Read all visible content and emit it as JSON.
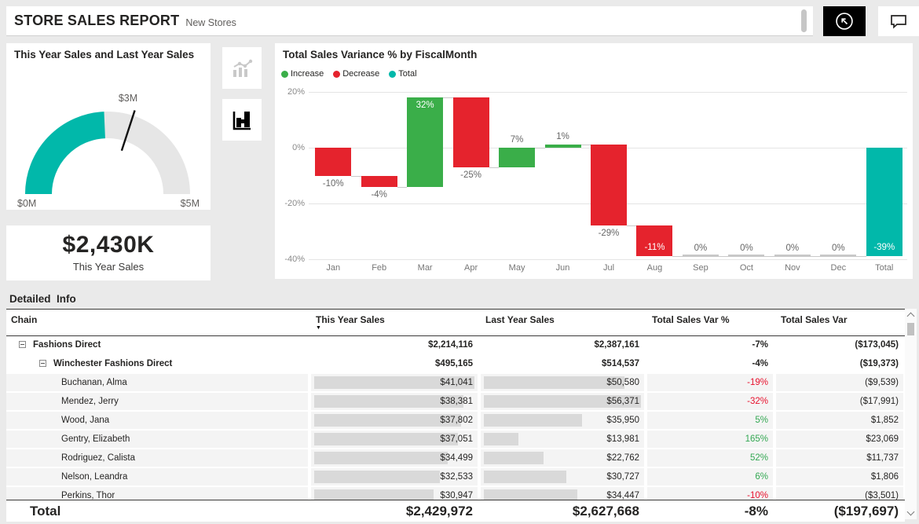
{
  "header": {
    "title": "STORE SALES REPORT",
    "subtitle": "New Stores"
  },
  "gauge": {
    "title": "This Year Sales and Last Year Sales",
    "min_label": "$0M",
    "max_label": "$5M",
    "target_label": "$3M",
    "value": 2430000,
    "min": 0,
    "max": 5000000,
    "target": 3000000,
    "fill_color": "#01B8AA",
    "track_color": "#e6e6e6"
  },
  "kpi": {
    "value": "$2,430K",
    "label": "This Year Sales"
  },
  "toggles": [
    {
      "name": "combo-chart",
      "active": false
    },
    {
      "name": "waterfall-chart",
      "active": true
    }
  ],
  "chart_data": {
    "type": "waterfall",
    "title": "Total Sales Variance % by FiscalMonth",
    "categories": [
      "Jan",
      "Feb",
      "Mar",
      "Apr",
      "May",
      "Jun",
      "Jul",
      "Aug",
      "Sep",
      "Oct",
      "Nov",
      "Dec",
      "Total"
    ],
    "changes": [
      -10,
      -4,
      32,
      -25,
      7,
      1,
      -29,
      -11,
      0,
      0,
      0,
      0
    ],
    "total": -39,
    "labels": [
      "-10%",
      "-4%",
      "32%",
      "-25%",
      "7%",
      "1%",
      "-29%",
      "-11%",
      "0%",
      "0%",
      "0%",
      "0%",
      "-39%"
    ],
    "label_pos": [
      "below",
      "below",
      "inside-top",
      "below",
      "above",
      "above",
      "below",
      "inside",
      "above",
      "above",
      "above",
      "above",
      "inside"
    ],
    "ylim": [
      -40,
      20
    ],
    "yticks": [
      {
        "v": 20,
        "label": "20%"
      },
      {
        "v": 0,
        "label": "0%"
      },
      {
        "v": -20,
        "label": "-20%"
      },
      {
        "v": -40,
        "label": "-40%"
      }
    ],
    "legend": [
      {
        "label": "Increase",
        "color": "#3aae49"
      },
      {
        "label": "Decrease",
        "color": "#e5232d"
      },
      {
        "label": "Total",
        "color": "#01B8AA"
      }
    ],
    "colors": {
      "increase": "#3aae49",
      "decrease": "#e5232d",
      "total": "#01B8AA",
      "connector": "#c9c9c9",
      "zero_stub": "#c8c8c8"
    }
  },
  "table": {
    "title": "Detailed  Info",
    "columns": [
      "Chain",
      "This Year Sales",
      "Last Year Sales",
      "Total Sales Var %",
      "Total Sales Var"
    ],
    "sorted_column": "This Year Sales",
    "rows": [
      {
        "level": 0,
        "collapse": true,
        "name": "Fashions Direct",
        "tys": "$2,214,116",
        "lys": "$2,387,161",
        "varp": "-7%",
        "varp_color": "",
        "var": "($173,045)"
      },
      {
        "level": 1,
        "collapse": true,
        "name": "Winchester Fashions Direct",
        "tys": "$495,165",
        "lys": "$514,537",
        "varp": "-4%",
        "varp_color": "",
        "var": "($19,373)"
      },
      {
        "level": 2,
        "name": "Buchanan, Alma",
        "tys": "$41,041",
        "tys_num": 41041,
        "lys": "$50,580",
        "lys_num": 50580,
        "varp": "-19%",
        "varp_color": "red",
        "var": "($9,539)"
      },
      {
        "level": 2,
        "name": "Mendez, Jerry",
        "tys": "$38,381",
        "tys_num": 38381,
        "lys": "$56,371",
        "lys_num": 56371,
        "varp": "-32%",
        "varp_color": "red",
        "var": "($17,991)"
      },
      {
        "level": 2,
        "name": "Wood, Jana",
        "tys": "$37,802",
        "tys_num": 37802,
        "lys": "$35,950",
        "lys_num": 35950,
        "varp": "5%",
        "varp_color": "green",
        "var": "$1,852"
      },
      {
        "level": 2,
        "name": "Gentry, Elizabeth",
        "tys": "$37,051",
        "tys_num": 37051,
        "lys": "$13,981",
        "lys_num": 13981,
        "varp": "165%",
        "varp_color": "green",
        "var": "$23,069"
      },
      {
        "level": 2,
        "name": "Rodriguez, Calista",
        "tys": "$34,499",
        "tys_num": 34499,
        "lys": "$22,762",
        "lys_num": 22762,
        "varp": "52%",
        "varp_color": "green",
        "var": "$11,737"
      },
      {
        "level": 2,
        "name": "Nelson, Leandra",
        "tys": "$32,533",
        "tys_num": 32533,
        "lys": "$30,727",
        "lys_num": 30727,
        "varp": "6%",
        "varp_color": "green",
        "var": "$1,806"
      },
      {
        "level": 2,
        "name": "Perkins, Thor",
        "tys": "$30,947",
        "tys_num": 30947,
        "lys": "$34,447",
        "lys_num": 34447,
        "varp": "-10%",
        "varp_color": "red",
        "var": "($3,501)"
      }
    ],
    "total": {
      "name": "Total",
      "tys": "$2,429,972",
      "lys": "$2,627,668",
      "varp": "-8%",
      "var": "($197,697)"
    }
  }
}
